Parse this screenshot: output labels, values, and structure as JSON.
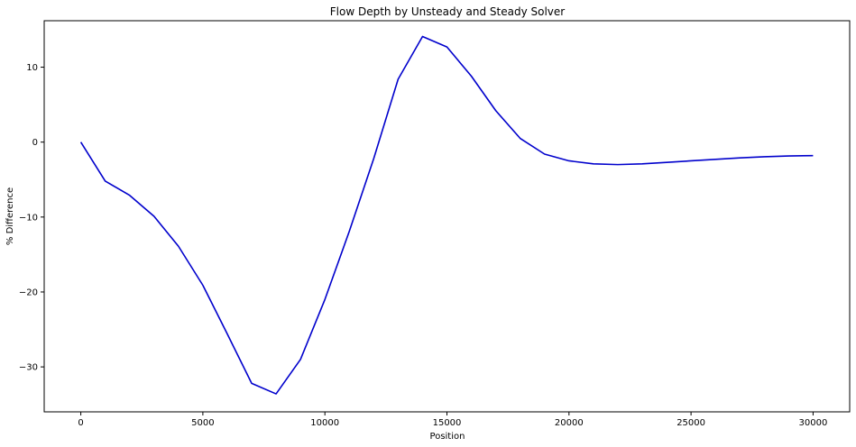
{
  "chart_data": {
    "type": "line",
    "title": "Flow Depth by Unsteady and Steady Solver",
    "xlabel": "Position",
    "ylabel": "% Difference",
    "xlim": [
      -1500,
      31500
    ],
    "ylim": [
      -36,
      16.2
    ],
    "xticks": [
      0,
      5000,
      10000,
      15000,
      20000,
      25000,
      30000
    ],
    "yticks": [
      -30,
      -20,
      -10,
      0,
      10
    ],
    "xtick_labels": [
      "0",
      "5000",
      "10000",
      "15000",
      "20000",
      "25000",
      "30000"
    ],
    "ytick_labels": [
      "−30",
      "−20",
      "−10",
      "0",
      "10"
    ],
    "grid": false,
    "series": [
      {
        "color": "#0000cc",
        "x": [
          0,
          1000,
          2000,
          3000,
          4000,
          5000,
          6000,
          7000,
          8000,
          9000,
          10000,
          11000,
          12000,
          13000,
          14000,
          15000,
          16000,
          17000,
          18000,
          19000,
          20000,
          21000,
          22000,
          23000,
          24000,
          25000,
          26000,
          27000,
          28000,
          29000,
          30000
        ],
        "y": [
          0.0,
          -5.2,
          -7.1,
          -9.9,
          -13.9,
          -19.1,
          -25.6,
          -32.2,
          -33.6,
          -29.0,
          -21.0,
          -11.9,
          -2.2,
          8.4,
          14.1,
          12.7,
          8.8,
          4.2,
          0.5,
          -1.6,
          -2.5,
          -2.9,
          -3.0,
          -2.9,
          -2.7,
          -2.5,
          -2.3,
          -2.1,
          -1.95,
          -1.85,
          -1.8
        ]
      }
    ]
  }
}
